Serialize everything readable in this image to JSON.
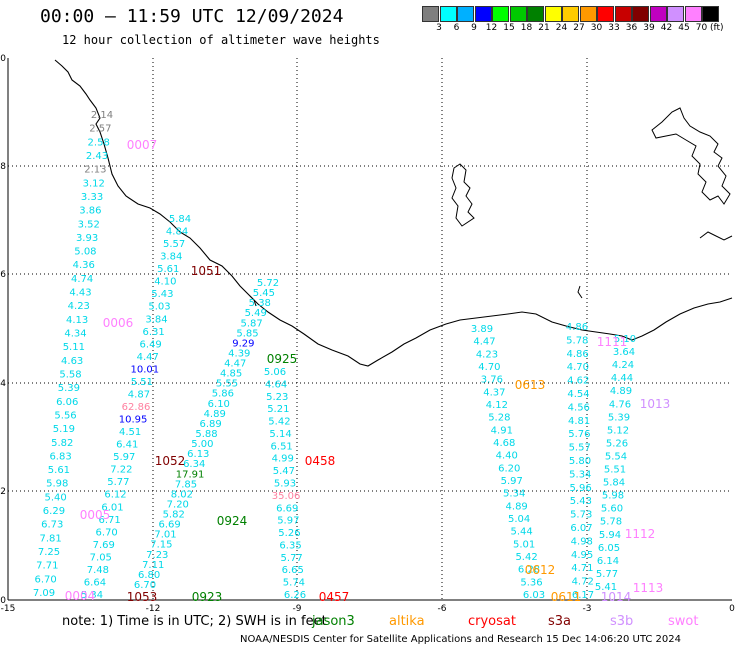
{
  "header": {
    "title": "00:00 — 11:59 UTC 12/09/2024",
    "subtitle": "12 hour collection of altimeter wave heights"
  },
  "colorbar": {
    "unit": "(ft)",
    "bins": [
      {
        "color": "#7f7f7f",
        "label": "3"
      },
      {
        "color": "#00ffff",
        "label": "6"
      },
      {
        "color": "#00b0ff",
        "label": "9"
      },
      {
        "color": "#0000ff",
        "label": "12"
      },
      {
        "color": "#00ff00",
        "label": "15"
      },
      {
        "color": "#00c800",
        "label": "18"
      },
      {
        "color": "#008000",
        "label": "21"
      },
      {
        "color": "#ffff00",
        "label": "24"
      },
      {
        "color": "#ffcc00",
        "label": "27"
      },
      {
        "color": "#ff9900",
        "label": "30"
      },
      {
        "color": "#ff0000",
        "label": "33"
      },
      {
        "color": "#c80000",
        "label": "36"
      },
      {
        "color": "#800000",
        "label": "39"
      },
      {
        "color": "#c000c0",
        "label": "42"
      },
      {
        "color": "#d090ff",
        "label": "45"
      },
      {
        "color": "#ff80ff",
        "label": "70"
      },
      {
        "color": "#000000",
        "label": ""
      }
    ]
  },
  "map": {
    "x_ticks": [
      "-15",
      "-12",
      "-9",
      "-6",
      "-3",
      "0"
    ],
    "y_ticks": [
      "10",
      "8",
      "6",
      "4",
      "2",
      "0"
    ],
    "pass_labels": [
      {
        "text": "0007",
        "color": "#ff80ff"
      },
      {
        "text": "1051",
        "color": "#800000"
      },
      {
        "text": "0006",
        "color": "#ff80ff"
      },
      {
        "text": "0925",
        "color": "#008000"
      },
      {
        "text": "0613",
        "color": "#ff9900"
      },
      {
        "text": "1111",
        "color": "#ff80ff"
      },
      {
        "text": "1013",
        "color": "#d090ff"
      },
      {
        "text": "1052",
        "color": "#800000"
      },
      {
        "text": "0458",
        "color": "#ff0000"
      },
      {
        "text": "0005",
        "color": "#ff80ff"
      },
      {
        "text": "0924",
        "color": "#008000"
      },
      {
        "text": "1112",
        "color": "#ff80ff"
      },
      {
        "text": "0612",
        "color": "#ff9900"
      },
      {
        "text": "1113",
        "color": "#ff80ff"
      },
      {
        "text": "0004",
        "color": "#ff80ff"
      },
      {
        "text": "1053",
        "color": "#800000"
      },
      {
        "text": "0923",
        "color": "#008000"
      },
      {
        "text": "0457",
        "color": "#ff0000"
      },
      {
        "text": "0611",
        "color": "#ff9900"
      },
      {
        "text": "1014",
        "color": "#d090ff"
      }
    ],
    "track_values": [
      {
        "track": "A",
        "values": [
          "2.14",
          "2.57",
          "2.58",
          "2.43",
          "2.13",
          "3.12",
          "3.33",
          "3.86",
          "3.52",
          "3.93",
          "5.08",
          "4.36",
          "4.74",
          "4.43",
          "4.23",
          "4.13",
          "4.34",
          "5.11",
          "4.63",
          "5.58",
          "5.39",
          "6.06",
          "5.56",
          "5.19",
          "5.82",
          "6.83",
          "5.61",
          "5.98",
          "5.40",
          "6.29",
          "6.73",
          "7.81",
          "7.25",
          "7.71",
          "6.70",
          "7.09"
        ]
      },
      {
        "track": "B",
        "values": [
          "5.84",
          "4.84",
          "5.57",
          "3.84",
          "5.61",
          "4.10",
          "5.43",
          "5.03",
          "3.84",
          "6.31",
          "6.49",
          "4.47",
          "10.01",
          "5.51",
          "4.87",
          "62.86",
          "10.95",
          "4.51",
          "6.41",
          "5.97",
          "7.22",
          "5.77",
          "6.12",
          "6.01",
          "6.71",
          "6.70",
          "7.69",
          "7.05",
          "7.48",
          "6.64",
          "5.34"
        ]
      },
      {
        "track": "C",
        "values": [
          "5.72",
          "5.45",
          "5.38",
          "5.49",
          "5.87",
          "5.85",
          "9.29",
          "4.39",
          "4.47",
          "4.85",
          "5.55",
          "5.86",
          "6.10",
          "4.89",
          "6.89",
          "5.88",
          "5.00",
          "6.13",
          "6.34",
          "17.91",
          "7.85",
          "8.02",
          "7.20",
          "5.82",
          "6.69",
          "7.01",
          "7.15",
          "7.23",
          "7.11",
          "6.80",
          "6.70"
        ]
      },
      {
        "track": "D",
        "values": [
          "5.06",
          "4.64",
          "5.23",
          "5.21",
          "5.42",
          "5.14",
          "6.51",
          "4.99",
          "5.47",
          "5.93",
          "35.06",
          "6.69",
          "5.97",
          "5.26",
          "6.35",
          "5.77",
          "6.65",
          "5.74",
          "6.26"
        ]
      },
      {
        "track": "E",
        "values": [
          "3.89",
          "4.47",
          "4.23",
          "4.70",
          "3.76",
          "4.37",
          "4.12",
          "5.28",
          "4.91",
          "4.68",
          "4.40",
          "6.20",
          "5.97",
          "5.34",
          "4.89",
          "5.04",
          "5.44",
          "5.01",
          "5.42",
          "6.28",
          "5.36",
          "6.03"
        ]
      },
      {
        "track": "F",
        "values": [
          "4.86",
          "5.78",
          "4.86",
          "4.70",
          "4.62",
          "4.54",
          "4.56",
          "4.81",
          "5.76",
          "5.57",
          "5.80",
          "5.34",
          "5.96",
          "5.43",
          "5.73",
          "6.07",
          "4.98",
          "4.95",
          "4.71",
          "4.72",
          "6.17"
        ]
      },
      {
        "track": "G",
        "values": [
          "5.10",
          "3.64",
          "4.24",
          "4.44",
          "4.89",
          "4.76",
          "5.39",
          "5.12",
          "5.26",
          "5.54",
          "5.51",
          "5.84",
          "5.98",
          "5.60",
          "5.78",
          "5.94",
          "6.05",
          "6.14",
          "5.77",
          "5.41"
        ]
      }
    ],
    "track_colors": {
      "normal": "#00d8e8",
      "blue": "#0000ff",
      "pink": "#ff80a0",
      "green": "#008000",
      "grey": "#7f7f7f"
    }
  },
  "footer": {
    "note": "note:  1) Time is in UTC;  2) SWH is in feet",
    "legend": [
      {
        "label": "jason3",
        "color": "#008000"
      },
      {
        "label": "altika",
        "color": "#ff9900"
      },
      {
        "label": "cryosat",
        "color": "#ff0000"
      },
      {
        "label": "s3a",
        "color": "#800000"
      },
      {
        "label": "s3b",
        "color": "#d090ff"
      },
      {
        "label": "swot",
        "color": "#ff80ff"
      }
    ],
    "credit": "NOAA/NESDIS Center for Satellite Applications and Research   15 Dec 14:06:20 UTC 2024"
  }
}
